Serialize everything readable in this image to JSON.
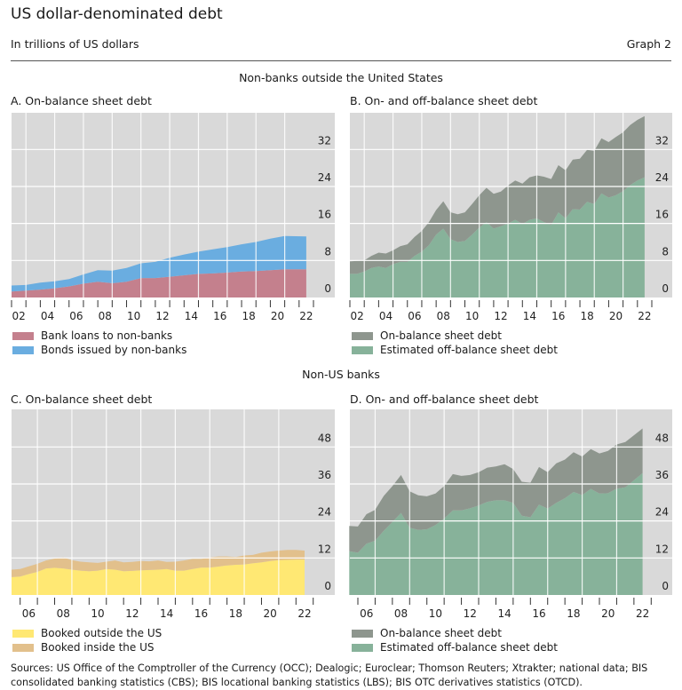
{
  "header": {
    "title": "US dollar-denominated debt",
    "subtitle": "In trillions of US dollars",
    "graph_number": "Graph 2"
  },
  "sections": [
    "Non-banks outside the United States",
    "Non-US banks"
  ],
  "colors": {
    "background": "#d9d9d9",
    "bank_loans": "#c4808d",
    "bonds": "#6aade0",
    "on_balance": "#8e968e",
    "off_balance": "#87b29a",
    "booked_outside": "#ffe873",
    "booked_inside": "#e2c08c"
  },
  "chart_data": [
    {
      "id": "A",
      "type": "area",
      "stacked": true,
      "title": "A. On-balance sheet debt",
      "x": [
        2002,
        2003,
        2004,
        2005,
        2006,
        2007,
        2008,
        2009,
        2010,
        2011,
        2012,
        2013,
        2014,
        2015,
        2016,
        2017,
        2018,
        2019,
        2020,
        2021,
        2022.5
      ],
      "xlim": [
        2002,
        2023
      ],
      "xticks": [
        "02",
        "04",
        "06",
        "08",
        "10",
        "12",
        "14",
        "16",
        "18",
        "20",
        "22"
      ],
      "ylim": [
        0,
        36
      ],
      "yticks": [
        0,
        8,
        16,
        24,
        32
      ],
      "grid": true,
      "legend": "bottom",
      "series": [
        {
          "name": "Bank loans to non-banks",
          "color_key": "bank_loans",
          "values": [
            1.3,
            1.5,
            1.7,
            2.0,
            2.4,
            3.0,
            3.4,
            3.1,
            3.4,
            4.2,
            4.2,
            4.5,
            4.8,
            5.1,
            5.2,
            5.4,
            5.6,
            5.7,
            5.9,
            6.1,
            6.1
          ]
        },
        {
          "name": "Bonds issued by non-banks",
          "color_key": "bonds",
          "values": [
            1.3,
            1.2,
            1.5,
            1.5,
            1.6,
            2.0,
            2.5,
            2.7,
            3.0,
            3.2,
            3.5,
            4.1,
            4.5,
            4.8,
            5.2,
            5.5,
            5.9,
            6.3,
            6.8,
            7.2,
            7.1
          ]
        }
      ]
    },
    {
      "id": "B",
      "type": "area",
      "stacked": true,
      "title": "B. On- and off-balance sheet debt",
      "x_start": 2002,
      "x_step": 0.5,
      "xlim": [
        2002,
        2023
      ],
      "xticks": [
        "02",
        "04",
        "06",
        "08",
        "10",
        "12",
        "14",
        "16",
        "18",
        "20",
        "22"
      ],
      "ylim": [
        0,
        39.5
      ],
      "yticks": [
        0,
        8,
        16,
        24,
        32
      ],
      "grid": true,
      "legend": "bottom",
      "series": [
        {
          "name": "Estimated off-balance sheet debt",
          "color_key": "off_balance",
          "values": [
            5.1,
            5.1,
            5.6,
            6.4,
            6.7,
            6.4,
            7.2,
            7.7,
            7.7,
            9.0,
            9.9,
            11.3,
            13.6,
            14.9,
            12.6,
            12.0,
            12.2,
            13.6,
            15.1,
            16.3,
            14.9,
            15.4,
            16.0,
            16.8,
            15.9,
            16.8,
            17.1,
            16.3,
            15.7,
            18.4,
            17.1,
            19.1,
            19.0,
            20.7,
            20.2,
            22.5,
            21.6,
            22.1,
            23.0,
            24.3,
            25.3,
            26.0
          ]
        },
        {
          "name": "On-balance sheet debt",
          "color_key": "on_balance",
          "values": [
            2.7,
            2.8,
            2.4,
            2.6,
            3.0,
            3.1,
            3.0,
            3.4,
            3.8,
            4.1,
            4.5,
            5.0,
            5.3,
            5.9,
            5.8,
            6.0,
            6.2,
            6.6,
            7.0,
            7.4,
            7.5,
            7.5,
            8.2,
            8.5,
            8.7,
            9.2,
            9.3,
            9.8,
            9.9,
            10.2,
            10.4,
            10.7,
            11.0,
            11.2,
            11.5,
            11.9,
            12.0,
            12.6,
            12.7,
            13.0,
            13.1,
            13.2
          ]
        }
      ],
      "legend_order": [
        1,
        0
      ]
    },
    {
      "id": "C",
      "type": "area",
      "stacked": true,
      "title": "C. On-balance sheet debt",
      "x_start": 2005.5,
      "x_step": 0.5,
      "xlim": [
        2006,
        2023
      ],
      "xticks": [
        "06",
        "08",
        "10",
        "12",
        "14",
        "16",
        "18",
        "20",
        "22"
      ],
      "ylim": [
        0,
        58
      ],
      "yticks": [
        0,
        12,
        24,
        36,
        48
      ],
      "grid": true,
      "legend": "bottom",
      "series": [
        {
          "name": "Booked outside the US",
          "color_key": "booked_outside",
          "values": [
            5.8,
            6.0,
            6.8,
            7.5,
            8.6,
            8.8,
            8.6,
            8.2,
            7.9,
            7.7,
            7.9,
            8.4,
            8.2,
            7.7,
            7.8,
            8.0,
            8.1,
            8.2,
            8.4,
            7.9,
            7.9,
            8.4,
            8.9,
            8.9,
            9.2,
            9.6,
            9.8,
            9.9,
            10.3,
            10.6,
            11.0,
            11.3,
            11.4,
            11.5,
            11.5
          ]
        },
        {
          "name": "Booked inside the US",
          "color_key": "booked_inside",
          "values": [
            2.4,
            2.4,
            2.5,
            2.6,
            2.6,
            3.0,
            3.6,
            3.1,
            2.9,
            2.9,
            2.5,
            2.4,
            3.0,
            2.9,
            2.9,
            3.0,
            2.8,
            3.0,
            2.3,
            2.9,
            3.3,
            3.3,
            2.8,
            3.3,
            3.3,
            2.9,
            2.5,
            2.9,
            2.7,
            3.1,
            3.1,
            3.1,
            3.2,
            3.1,
            2.9
          ]
        }
      ]
    },
    {
      "id": "D",
      "type": "area",
      "stacked": true,
      "title": "D. On- and off-balance sheet debt",
      "x_start": 2005.5,
      "x_step": 0.5,
      "xlim": [
        2006,
        2023
      ],
      "xticks": [
        "06",
        "08",
        "10",
        "12",
        "14",
        "16",
        "18",
        "20",
        "22"
      ],
      "ylim": [
        0,
        58
      ],
      "yticks": [
        0,
        12,
        24,
        36,
        48
      ],
      "grid": true,
      "legend": "bottom",
      "series": [
        {
          "name": "Estimated off-balance sheet debt",
          "color_key": "off_balance",
          "values": [
            14.2,
            13.7,
            16.6,
            17.6,
            20.8,
            23.7,
            26.6,
            21.8,
            21.1,
            21.3,
            22.7,
            24.8,
            27.4,
            27.4,
            28.1,
            29.0,
            30.2,
            30.7,
            30.7,
            29.9,
            25.7,
            25.2,
            29.3,
            28.0,
            29.9,
            31.4,
            33.4,
            32.4,
            34.4,
            32.9,
            33.0,
            34.5,
            34.9,
            37.2,
            39.5
          ]
        },
        {
          "name": "On-balance sheet debt",
          "color_key": "on_balance",
          "values": [
            8.2,
            8.5,
            9.6,
            10.0,
            11.3,
            11.6,
            12.3,
            11.8,
            11.2,
            10.7,
            10.2,
            10.5,
            11.8,
            11.2,
            10.8,
            10.8,
            11.1,
            11.0,
            11.7,
            10.9,
            11.0,
            11.2,
            12.2,
            11.8,
            12.8,
            12.5,
            12.9,
            12.5,
            12.9,
            13.0,
            13.7,
            14.3,
            14.7,
            14.6,
            14.5
          ]
        }
      ],
      "legend_order": [
        1,
        0
      ]
    }
  ],
  "sources": "Sources: US Office of the Comptroller of the Currency (OCC); Dealogic; Euroclear; Thomson Reuters; Xtrakter; national data; BIS consolidated banking statistics (CBS); BIS locational banking statistics (LBS); BIS OTC derivatives statistics (OTCD)."
}
